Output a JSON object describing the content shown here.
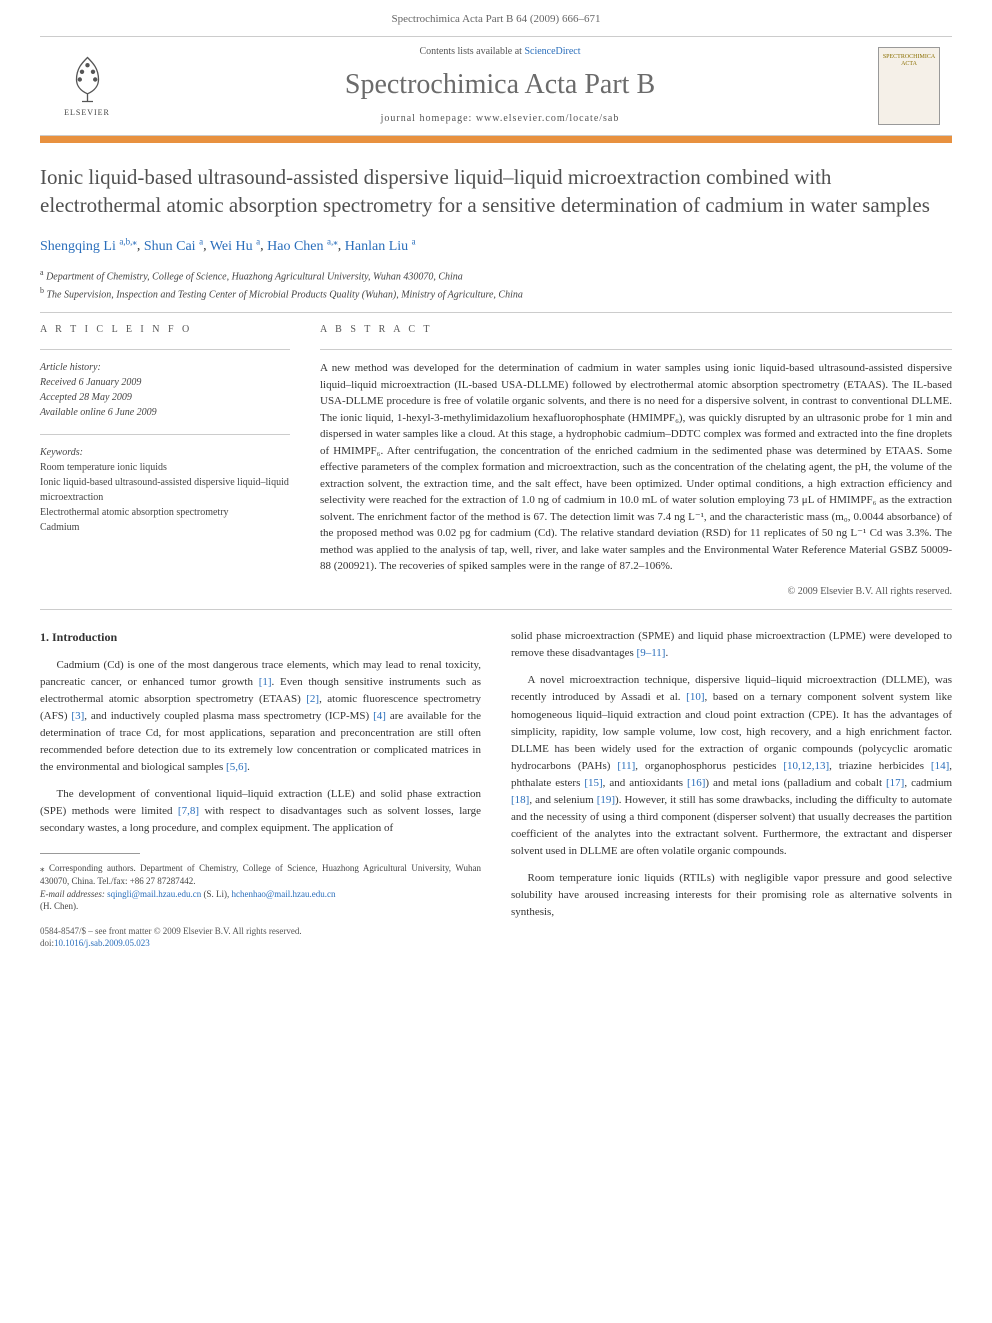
{
  "header": {
    "citation": "Spectrochimica Acta Part B 64 (2009) 666–671"
  },
  "banner": {
    "contents_prefix": "Contents lists available at ",
    "contents_link": "ScienceDirect",
    "journal_name": "Spectrochimica Acta Part B",
    "homepage_prefix": "journal homepage: ",
    "homepage_url": "www.elsevier.com/locate/sab",
    "elsevier_label": "ELSEVIER",
    "thumb_line1": "SPECTROCHIMICA",
    "thumb_line2": "ACTA"
  },
  "article": {
    "title": "Ionic liquid-based ultrasound-assisted dispersive liquid–liquid microextraction combined with electrothermal atomic absorption spectrometry for a sensitive determination of cadmium in water samples",
    "authors": [
      {
        "name": "Shengqing Li",
        "sup": "a,b,",
        "star": true
      },
      {
        "name": "Shun Cai",
        "sup": "a"
      },
      {
        "name": "Wei Hu",
        "sup": "a"
      },
      {
        "name": "Hao Chen",
        "sup": "a,",
        "star": true
      },
      {
        "name": "Hanlan Liu",
        "sup": "a"
      }
    ],
    "affiliations": [
      {
        "sup": "a",
        "text": "Department of Chemistry, College of Science, Huazhong Agricultural University, Wuhan 430070, China"
      },
      {
        "sup": "b",
        "text": "The Supervision, Inspection and Testing Center of Microbial Products Quality (Wuhan), Ministry of Agriculture, China"
      }
    ]
  },
  "info": {
    "section_label": "A R T I C L E   I N F O",
    "history_label": "Article history:",
    "history": [
      "Received 6 January 2009",
      "Accepted 28 May 2009",
      "Available online 6 June 2009"
    ],
    "keywords_label": "Keywords:",
    "keywords": [
      "Room temperature ionic liquids",
      "Ionic liquid-based ultrasound-assisted dispersive liquid–liquid microextraction",
      "Electrothermal atomic absorption spectrometry",
      "Cadmium"
    ]
  },
  "abstract": {
    "section_label": "A B S T R A C T",
    "text": "A new method was developed for the determination of cadmium in water samples using ionic liquid-based ultrasound-assisted dispersive liquid–liquid microextraction (IL-based USA-DLLME) followed by electrothermal atomic absorption spectrometry (ETAAS). The IL-based USA-DLLME procedure is free of volatile organic solvents, and there is no need for a dispersive solvent, in contrast to conventional DLLME. The ionic liquid, 1-hexyl-3-methylimidazolium hexafluorophosphate (HMIMPF₆), was quickly disrupted by an ultrasonic probe for 1 min and dispersed in water samples like a cloud. At this stage, a hydrophobic cadmium–DDTC complex was formed and extracted into the fine droplets of HMIMPF₆. After centrifugation, the concentration of the enriched cadmium in the sedimented phase was determined by ETAAS. Some effective parameters of the complex formation and microextraction, such as the concentration of the chelating agent, the pH, the volume of the extraction solvent, the extraction time, and the salt effect, have been optimized. Under optimal conditions, a high extraction efficiency and selectivity were reached for the extraction of 1.0 ng of cadmium in 10.0 mL of water solution employing 73 μL of HMIMPF₆ as the extraction solvent. The enrichment factor of the method is 67. The detection limit was 7.4 ng L⁻¹, and the characteristic mass (m₀, 0.0044 absorbance) of the proposed method was 0.02 pg for cadmium (Cd). The relative standard deviation (RSD) for 11 replicates of 50 ng L⁻¹ Cd was 3.3%. The method was applied to the analysis of tap, well, river, and lake water samples and the Environmental Water Reference Material GSBZ 50009-88 (200921). The recoveries of spiked samples were in the range of 87.2–106%.",
    "copyright": "© 2009 Elsevier B.V. All rights reserved."
  },
  "body": {
    "intro_heading": "1. Introduction",
    "left_paragraphs": [
      "Cadmium (Cd) is one of the most dangerous trace elements, which may lead to renal toxicity, pancreatic cancer, or enhanced tumor growth [1]. Even though sensitive instruments such as electrothermal atomic absorption spectrometry (ETAAS) [2], atomic fluorescence spectrometry (AFS) [3], and inductively coupled plasma mass spectrometry (ICP-MS) [4] are available for the determination of trace Cd, for most applications, separation and preconcentration are still often recommended before detection due to its extremely low concentration or complicated matrices in the environmental and biological samples [5,6].",
      "The development of conventional liquid–liquid extraction (LLE) and solid phase extraction (SPE) methods were limited [7,8] with respect to disadvantages such as solvent losses, large secondary wastes, a long procedure, and complex equipment. The application of"
    ],
    "right_paragraphs": [
      "solid phase microextraction (SPME) and liquid phase microextraction (LPME) were developed to remove these disadvantages [9–11].",
      "A novel microextraction technique, dispersive liquid–liquid microextraction (DLLME), was recently introduced by Assadi et al. [10], based on a ternary component solvent system like homogeneous liquid–liquid extraction and cloud point extraction (CPE). It has the advantages of simplicity, rapidity, low sample volume, low cost, high recovery, and a high enrichment factor. DLLME has been widely used for the extraction of organic compounds (polycyclic aromatic hydrocarbons (PAHs) [11], organophosphorus pesticides [10,12,13], triazine herbicides [14], phthalate esters [15], and antioxidants [16]) and metal ions (palladium and cobalt [17], cadmium [18], and selenium [19]). However, it still has some drawbacks, including the difficulty to automate and the necessity of using a third component (disperser solvent) that usually decreases the partition coefficient of the analytes into the extractant solvent. Furthermore, the extractant and disperser solvent used in DLLME are often volatile organic compounds.",
      "Room temperature ionic liquids (RTILs) with negligible vapor pressure and good selective solubility have aroused increasing interests for their promising role as alternative solvents in synthesis,"
    ]
  },
  "footnote": {
    "corresponding": "⁎ Corresponding authors. Department of Chemistry, College of Science, Huazhong Agricultural University, Wuhan 430070, China. Tel./fax: +86 27 87287442.",
    "email_label": "E-mail addresses:",
    "email1": "sqingli@mail.hzau.edu.cn",
    "email1_name": "(S. Li),",
    "email2": "hchenhao@mail.hzau.edu.cn",
    "email2_name": "(H. Chen)."
  },
  "issn": {
    "line1": "0584-8547/$ – see front matter © 2009 Elsevier B.V. All rights reserved.",
    "doi_prefix": "doi:",
    "doi": "10.1016/j.sab.2009.05.023"
  },
  "colors": {
    "orange": "#e8913f",
    "link": "#2a6ebb",
    "text": "#333333",
    "gray": "#6b6b6b"
  }
}
